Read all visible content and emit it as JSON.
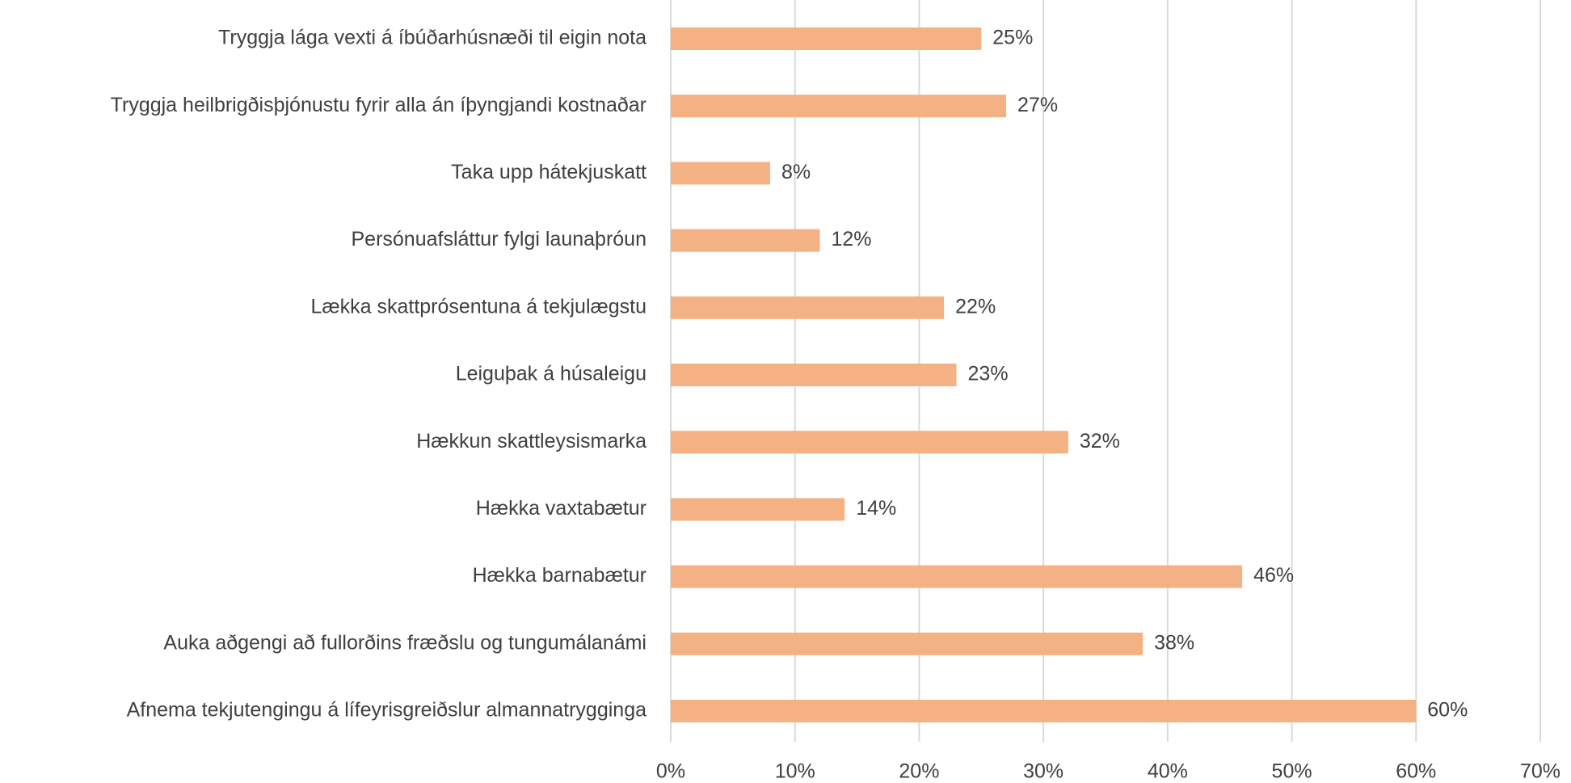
{
  "chart_data": {
    "type": "bar",
    "orientation": "horizontal",
    "categories": [
      "Tryggja lága vexti á íbúðarhúsnæði til eigin nota",
      "Tryggja heilbrigðisþjónustu fyrir alla án íþyngjandi kostnaðar",
      "Taka upp hátekjuskatt",
      "Persónuafsláttur fylgi launaþróun",
      "Lækka skattprósentuna á tekjulægstu",
      "Leiguþak á húsaleigu",
      "Hækkun skattleysismarka",
      "Hækka vaxtabætur",
      "Hækka barnabætur",
      "Auka aðgengi að fullorðins fræðslu og tungumálanámi",
      "Afnema tekjutengingu á lífeyrisgreiðslur almannatrygginga"
    ],
    "values": [
      25,
      27,
      8,
      12,
      22,
      23,
      32,
      14,
      46,
      38,
      60
    ],
    "value_labels": [
      "25%",
      "27%",
      "8%",
      "12%",
      "22%",
      "23%",
      "32%",
      "14%",
      "46%",
      "38%",
      "60%"
    ],
    "color": "#f4b183",
    "xlim": [
      0,
      70
    ],
    "xticks": [
      {
        "value": 0,
        "label": "0%"
      },
      {
        "value": 10,
        "label": "10%"
      },
      {
        "value": 20,
        "label": "20%"
      },
      {
        "value": 30,
        "label": "30%"
      },
      {
        "value": 40,
        "label": "40%"
      },
      {
        "value": 50,
        "label": "50%"
      },
      {
        "value": 60,
        "label": "60%"
      },
      {
        "value": 70,
        "label": "70%"
      }
    ],
    "grid": true
  }
}
